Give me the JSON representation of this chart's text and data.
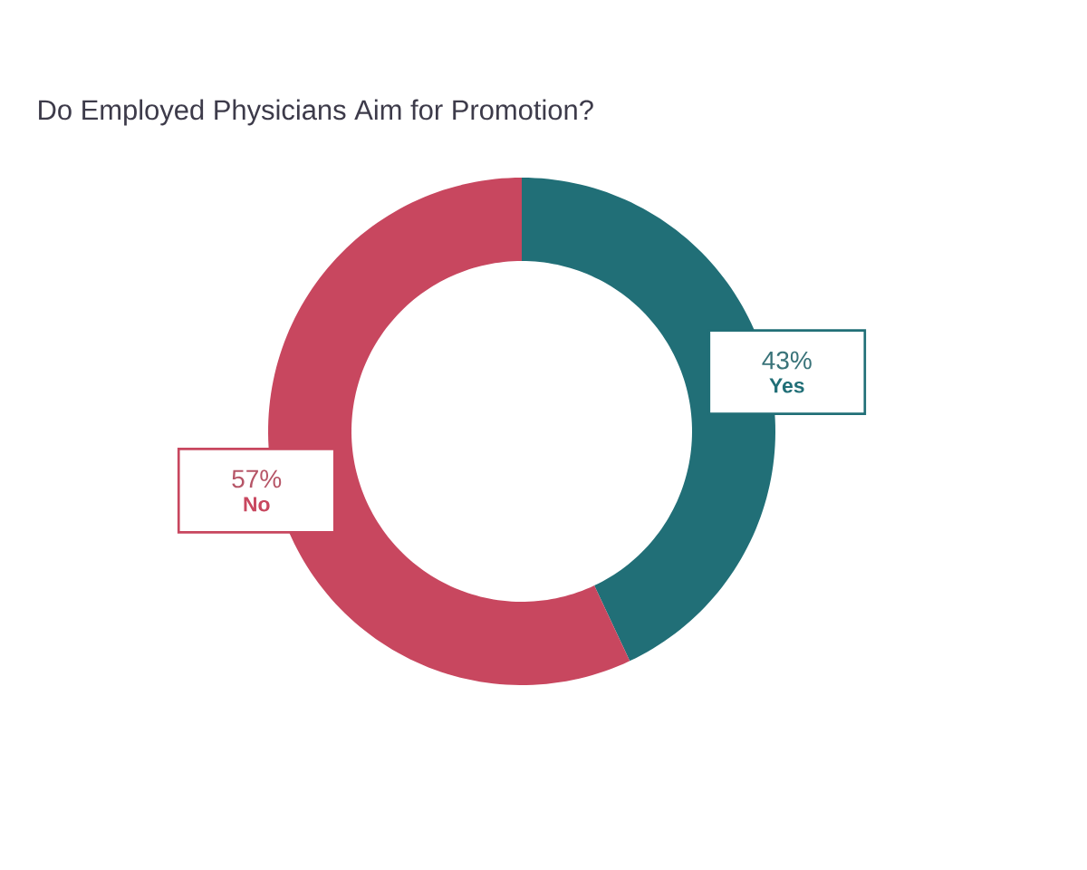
{
  "chart_data": {
    "type": "donut",
    "title": "Do Employed Physicians Aim for Promotion?",
    "categories": [
      "Yes",
      "No"
    ],
    "values": [
      43,
      57
    ],
    "colors": [
      "#216f77",
      "#c8475f"
    ],
    "value_labels": [
      "43%",
      "57%"
    ]
  }
}
